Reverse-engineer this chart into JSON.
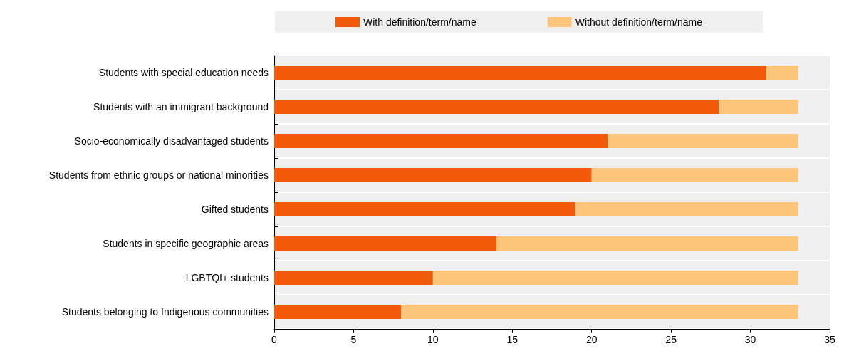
{
  "chart_data": {
    "type": "bar",
    "orientation": "horizontal",
    "stacked": true,
    "categories": [
      "Students with special education needs",
      "Students with an immigrant background",
      "Socio-economically disadvantaged students",
      "Students from ethnic groups or national minorities",
      "Gifted students",
      "Students in specific geographic areas",
      "LGBTQI+ students",
      "Students belonging to Indigenous communities"
    ],
    "series": [
      {
        "name": "With definition/term/name",
        "color": "#f05a0a",
        "values": [
          31,
          28,
          21,
          20,
          19,
          14,
          10,
          8
        ]
      },
      {
        "name": "Without definition/term/name",
        "color": "#fdc47c",
        "values": [
          2,
          5,
          12,
          13,
          14,
          19,
          23,
          25
        ]
      }
    ],
    "xlim": [
      0,
      35
    ],
    "xticks": [
      0,
      5,
      10,
      15,
      20,
      25,
      30,
      35
    ],
    "grid": "y",
    "legend": "top"
  }
}
